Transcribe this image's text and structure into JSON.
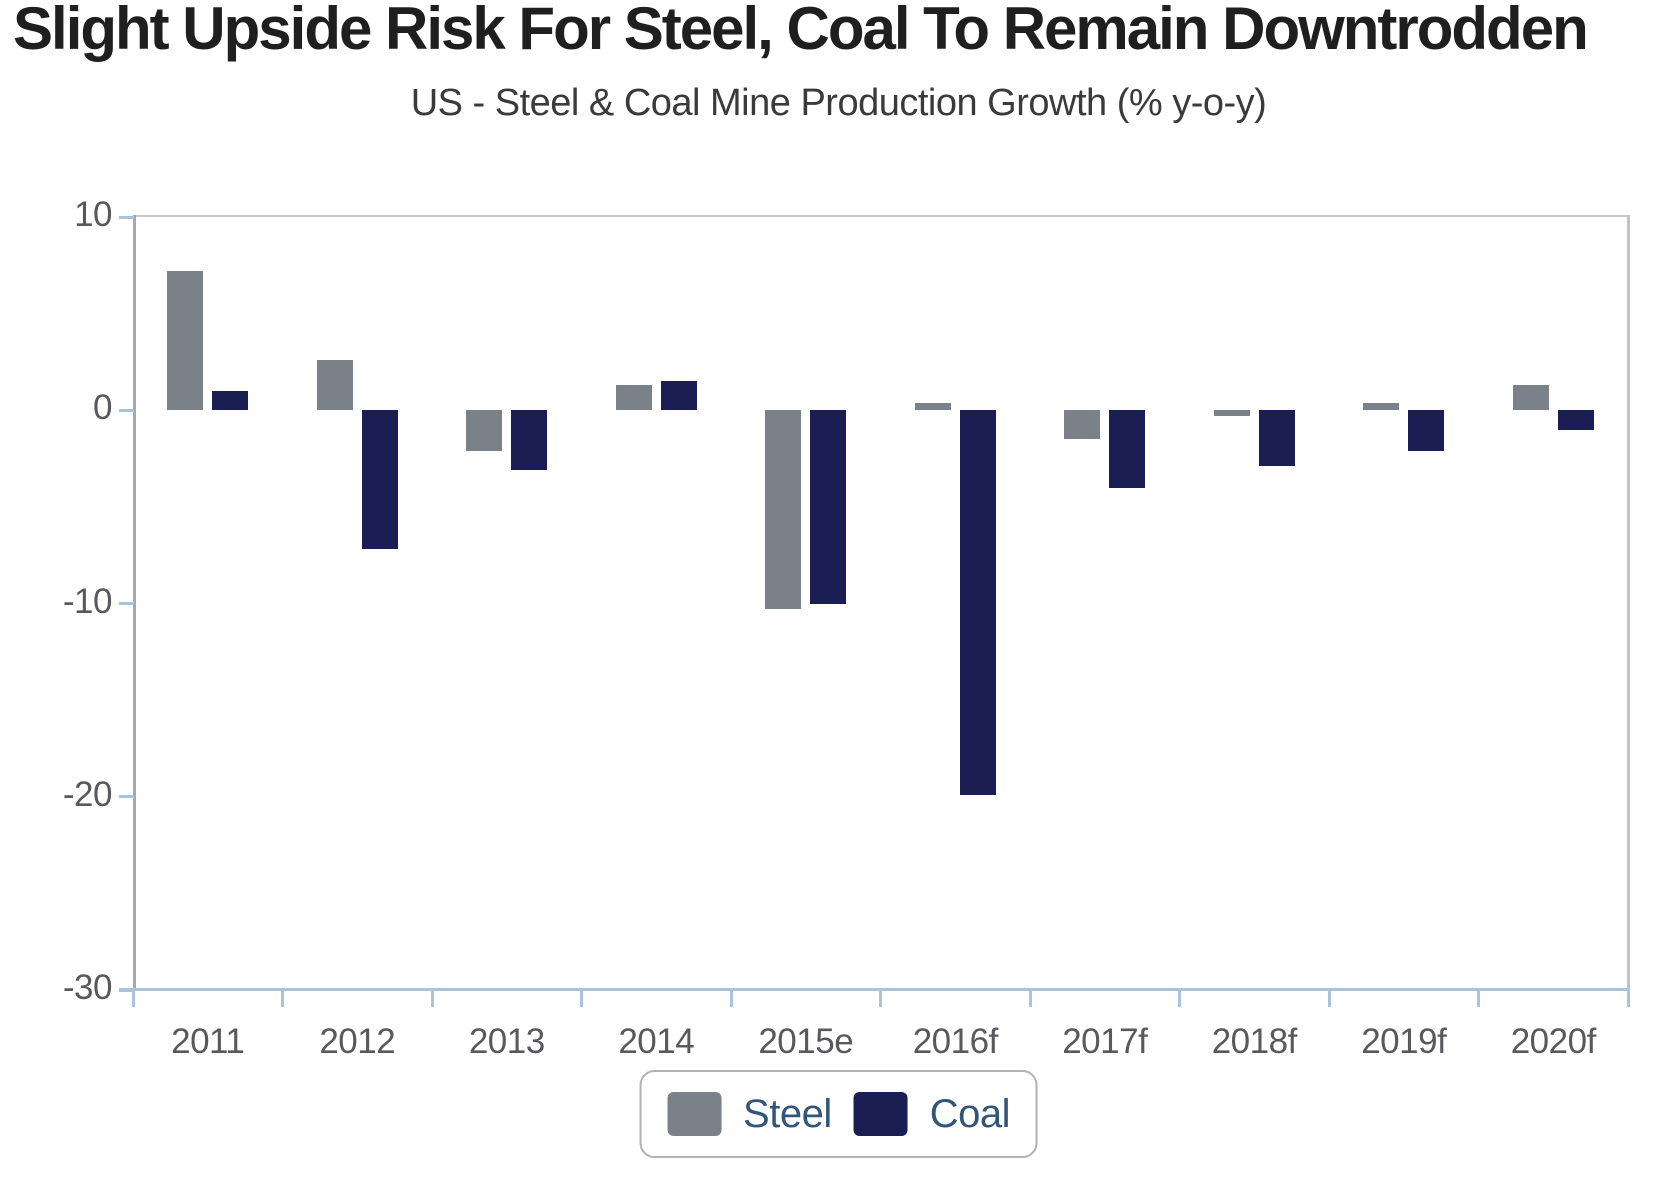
{
  "title": "Slight Upside Risk For Steel, Coal To Remain Downtrodden",
  "subtitle": "US - Steel & Coal Mine Production Growth (% y-o-y)",
  "legend": {
    "steel_label": "Steel",
    "coal_label": "Coal"
  },
  "colors": {
    "steel_bar": "#7a8189",
    "coal_bar": "#1a1e52",
    "legend_text": "#33557a",
    "axis_label": "#58595d",
    "tick_and_baseline": "#a9c3dd",
    "spine_gray": "#b0b0b5",
    "title_text": "#1f1f1f",
    "subtitle_text": "#3a3a3a"
  },
  "chart_data": {
    "type": "bar",
    "title": "Slight Upside Risk For Steel, Coal To Remain Downtrodden",
    "subtitle": "US - Steel & Coal Mine Production Growth (% y-o-y)",
    "categories": [
      "2011",
      "2012",
      "2013",
      "2014",
      "2015e",
      "2016f",
      "2017f",
      "2018f",
      "2019f",
      "2020f"
    ],
    "series": [
      {
        "name": "Steel",
        "color": "#7a8189",
        "values": [
          7.2,
          2.6,
          -2.1,
          1.3,
          -10.3,
          0.4,
          -1.5,
          -0.3,
          0.4,
          1.3
        ]
      },
      {
        "name": "Coal",
        "color": "#1a1e52",
        "values": [
          1.0,
          -7.2,
          -3.1,
          1.5,
          -10.0,
          -19.9,
          -4.0,
          -2.9,
          -2.1,
          -1.0
        ]
      }
    ],
    "xlabel": "",
    "ylabel": "",
    "ylim": [
      -30,
      10
    ],
    "yticks": [
      10,
      0,
      -10,
      -20,
      -30
    ],
    "grid": false,
    "legend_position": "bottom"
  }
}
